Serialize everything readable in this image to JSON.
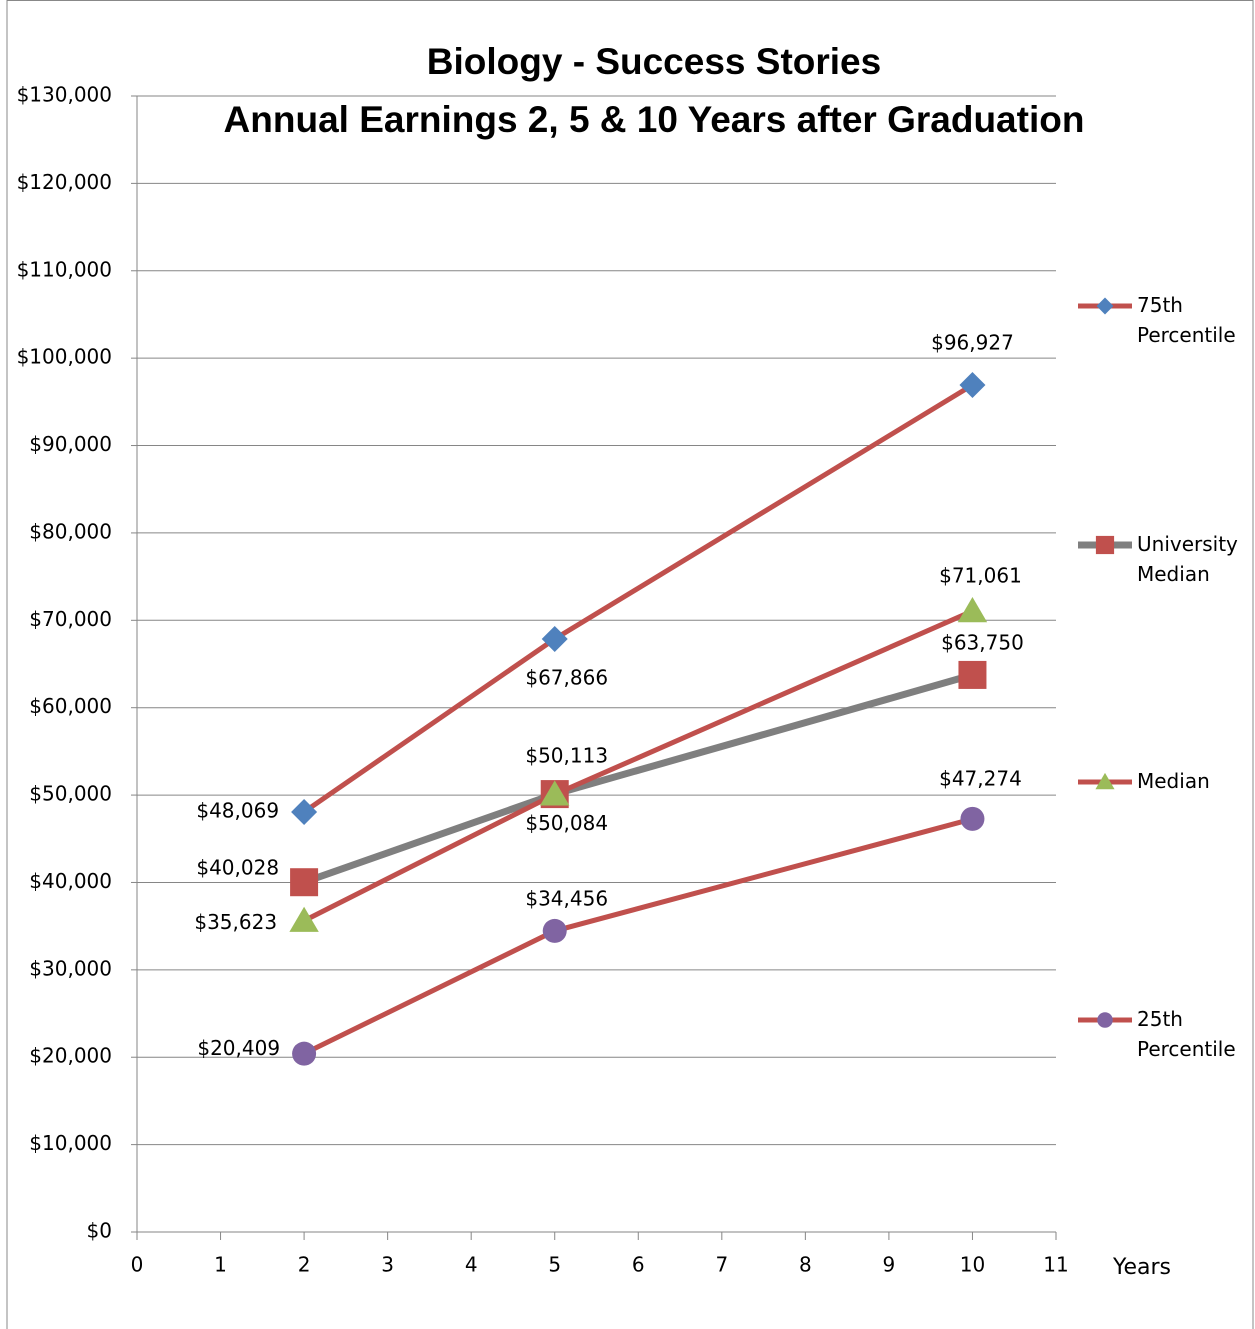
{
  "chart_data": {
    "type": "line",
    "title": "Biology - Success Stories",
    "subtitle": "Annual Earnings 2, 5 & 10 Years after Graduation",
    "xlabel": "Years",
    "x": [
      2,
      5,
      10
    ],
    "xlim": [
      0,
      11
    ],
    "xticks": [
      0,
      1,
      2,
      3,
      4,
      5,
      6,
      7,
      8,
      9,
      10,
      11
    ],
    "ylim": [
      0,
      130000
    ],
    "yticks": [
      {
        "value": 0,
        "label": "$0"
      },
      {
        "value": 10000,
        "label": "$10,000"
      },
      {
        "value": 20000,
        "label": "$20,000"
      },
      {
        "value": 30000,
        "label": "$30,000"
      },
      {
        "value": 40000,
        "label": "$40,000"
      },
      {
        "value": 50000,
        "label": "$50,000"
      },
      {
        "value": 60000,
        "label": "$60,000"
      },
      {
        "value": 70000,
        "label": "$70,000"
      },
      {
        "value": 80000,
        "label": "$80,000"
      },
      {
        "value": 90000,
        "label": "$90,000"
      },
      {
        "value": 100000,
        "label": "$100,000"
      },
      {
        "value": 110000,
        "label": "$110,000"
      },
      {
        "value": 120000,
        "label": "$120,000"
      },
      {
        "value": 130000,
        "label": "$130,000"
      }
    ],
    "grid": true,
    "legend": "right",
    "series": [
      {
        "name": "75th Percentile",
        "color": "#c0504d",
        "marker": "diamond",
        "marker_color": "#4f81bd",
        "values": [
          48069,
          67866,
          96927
        ],
        "value_labels": [
          "$48,069",
          "$67,866",
          "$96,927"
        ]
      },
      {
        "name": "University Median",
        "color": "#7f7f7f",
        "marker": "square",
        "marker_color": "#c0504d",
        "values": [
          40028,
          50113,
          63750
        ],
        "value_labels": [
          "$40,028",
          "$50,113",
          "$63,750"
        ]
      },
      {
        "name": "Median",
        "color": "#c0504d",
        "marker": "triangle",
        "marker_color": "#9bbb59",
        "values": [
          35623,
          50084,
          71061
        ],
        "value_labels": [
          "$35,623",
          "$50,084",
          "$71,061"
        ]
      },
      {
        "name": "25th Percentile",
        "color": "#c0504d",
        "marker": "circle",
        "marker_color": "#8064a2",
        "values": [
          20409,
          34456,
          47274
        ],
        "value_labels": [
          "$20,409",
          "$34,456",
          "$47,274"
        ]
      }
    ]
  }
}
